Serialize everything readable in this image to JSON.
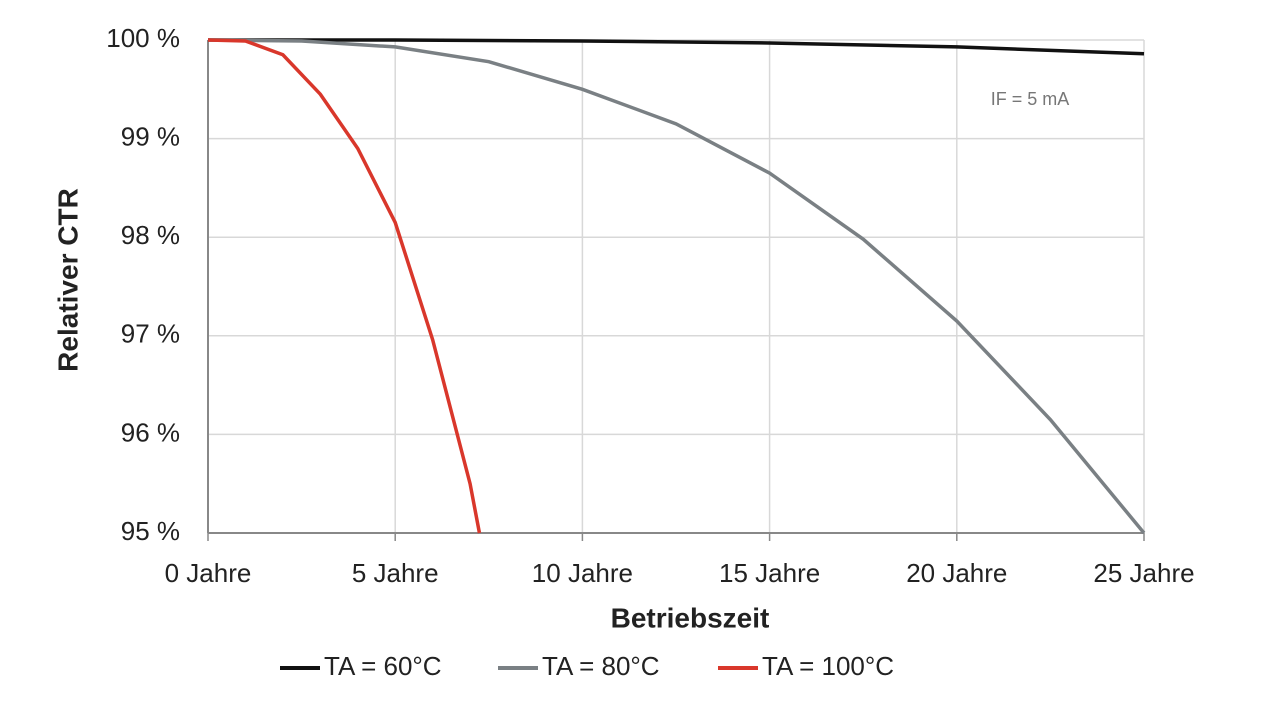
{
  "chart_data": {
    "type": "line",
    "x_label": "Betriebszeit",
    "y_label": "Relativer CTR",
    "annotation": "IF = 5 mA",
    "xlim": [
      0,
      25
    ],
    "xticks": [
      {
        "value": 0,
        "label": "0 Jahre"
      },
      {
        "value": 5,
        "label": "5 Jahre"
      },
      {
        "value": 10,
        "label": "10 Jahre"
      },
      {
        "value": 15,
        "label": "15 Jahre"
      },
      {
        "value": 20,
        "label": "20 Jahre"
      },
      {
        "value": 25,
        "label": "25 Jahre"
      }
    ],
    "ylim": [
      95,
      100
    ],
    "yticks": [
      {
        "value": 95,
        "label": "95 %"
      },
      {
        "value": 96,
        "label": "96 %"
      },
      {
        "value": 97,
        "label": "97 %"
      },
      {
        "value": 98,
        "label": "98 %"
      },
      {
        "value": 99,
        "label": "99 %"
      },
      {
        "value": 100,
        "label": "100 %"
      }
    ],
    "grid": true,
    "legend": "bottom",
    "series": [
      {
        "name": "TA = 60°C",
        "color": "#111111",
        "x": [
          0,
          5,
          10,
          15,
          20,
          25
        ],
        "values": [
          100,
          100,
          99.99,
          99.97,
          99.93,
          99.86
        ]
      },
      {
        "name": "TA = 80°C",
        "color": "#7a8084",
        "x": [
          0,
          2.5,
          5,
          7.5,
          10,
          12.5,
          15,
          17.5,
          20,
          22.5,
          25
        ],
        "values": [
          100,
          99.99,
          99.93,
          99.78,
          99.5,
          99.15,
          98.65,
          97.98,
          97.15,
          96.15,
          95
        ]
      },
      {
        "name": "TA = 100°C",
        "color": "#d9372b",
        "x": [
          0,
          1,
          2,
          3,
          4,
          5,
          6,
          7,
          7.25
        ],
        "values": [
          100,
          99.99,
          99.85,
          99.45,
          98.9,
          98.15,
          96.96,
          95.5,
          95
        ]
      }
    ]
  }
}
